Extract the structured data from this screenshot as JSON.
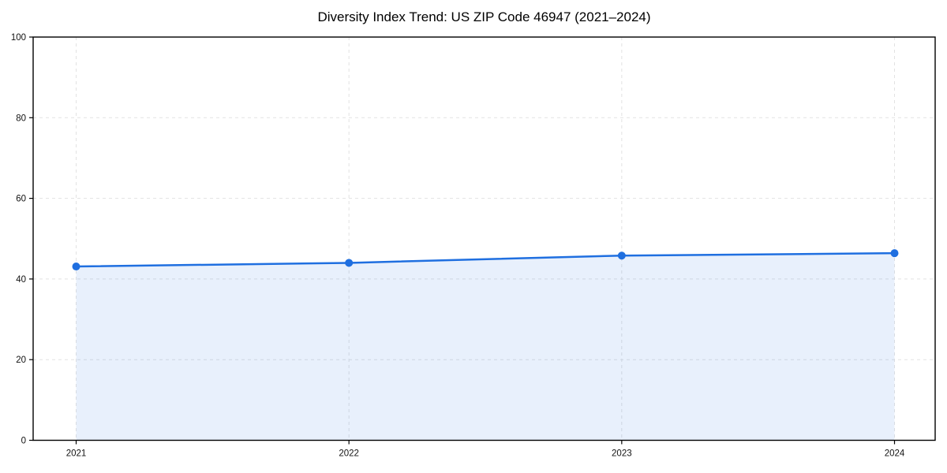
{
  "chart_data": {
    "type": "area",
    "title": "Diversity Index Trend: US ZIP Code 46947 (2021–2024)",
    "x": [
      2021,
      2022,
      2023,
      2024
    ],
    "categories": [
      "2021",
      "2022",
      "2023",
      "2024"
    ],
    "series": [
      {
        "name": "Diversity Index",
        "values": [
          43.1,
          44.0,
          45.8,
          46.4
        ]
      }
    ],
    "xlabel": "",
    "ylabel": "",
    "ylim": [
      0,
      100
    ],
    "yticks": [
      0,
      20,
      40,
      60,
      80,
      100
    ],
    "xtick_labels": [
      "2021",
      "2022",
      "2023",
      "2024"
    ],
    "grid": "dashed",
    "legend": "none",
    "colors": {
      "line": "#1f6fe0",
      "marker": "#1f6fe0",
      "fill": "rgba(31,111,224,0.10)",
      "grid": "#e2e2e2",
      "spine": "#000000",
      "text": "#111111",
      "background": "#ffffff"
    }
  }
}
